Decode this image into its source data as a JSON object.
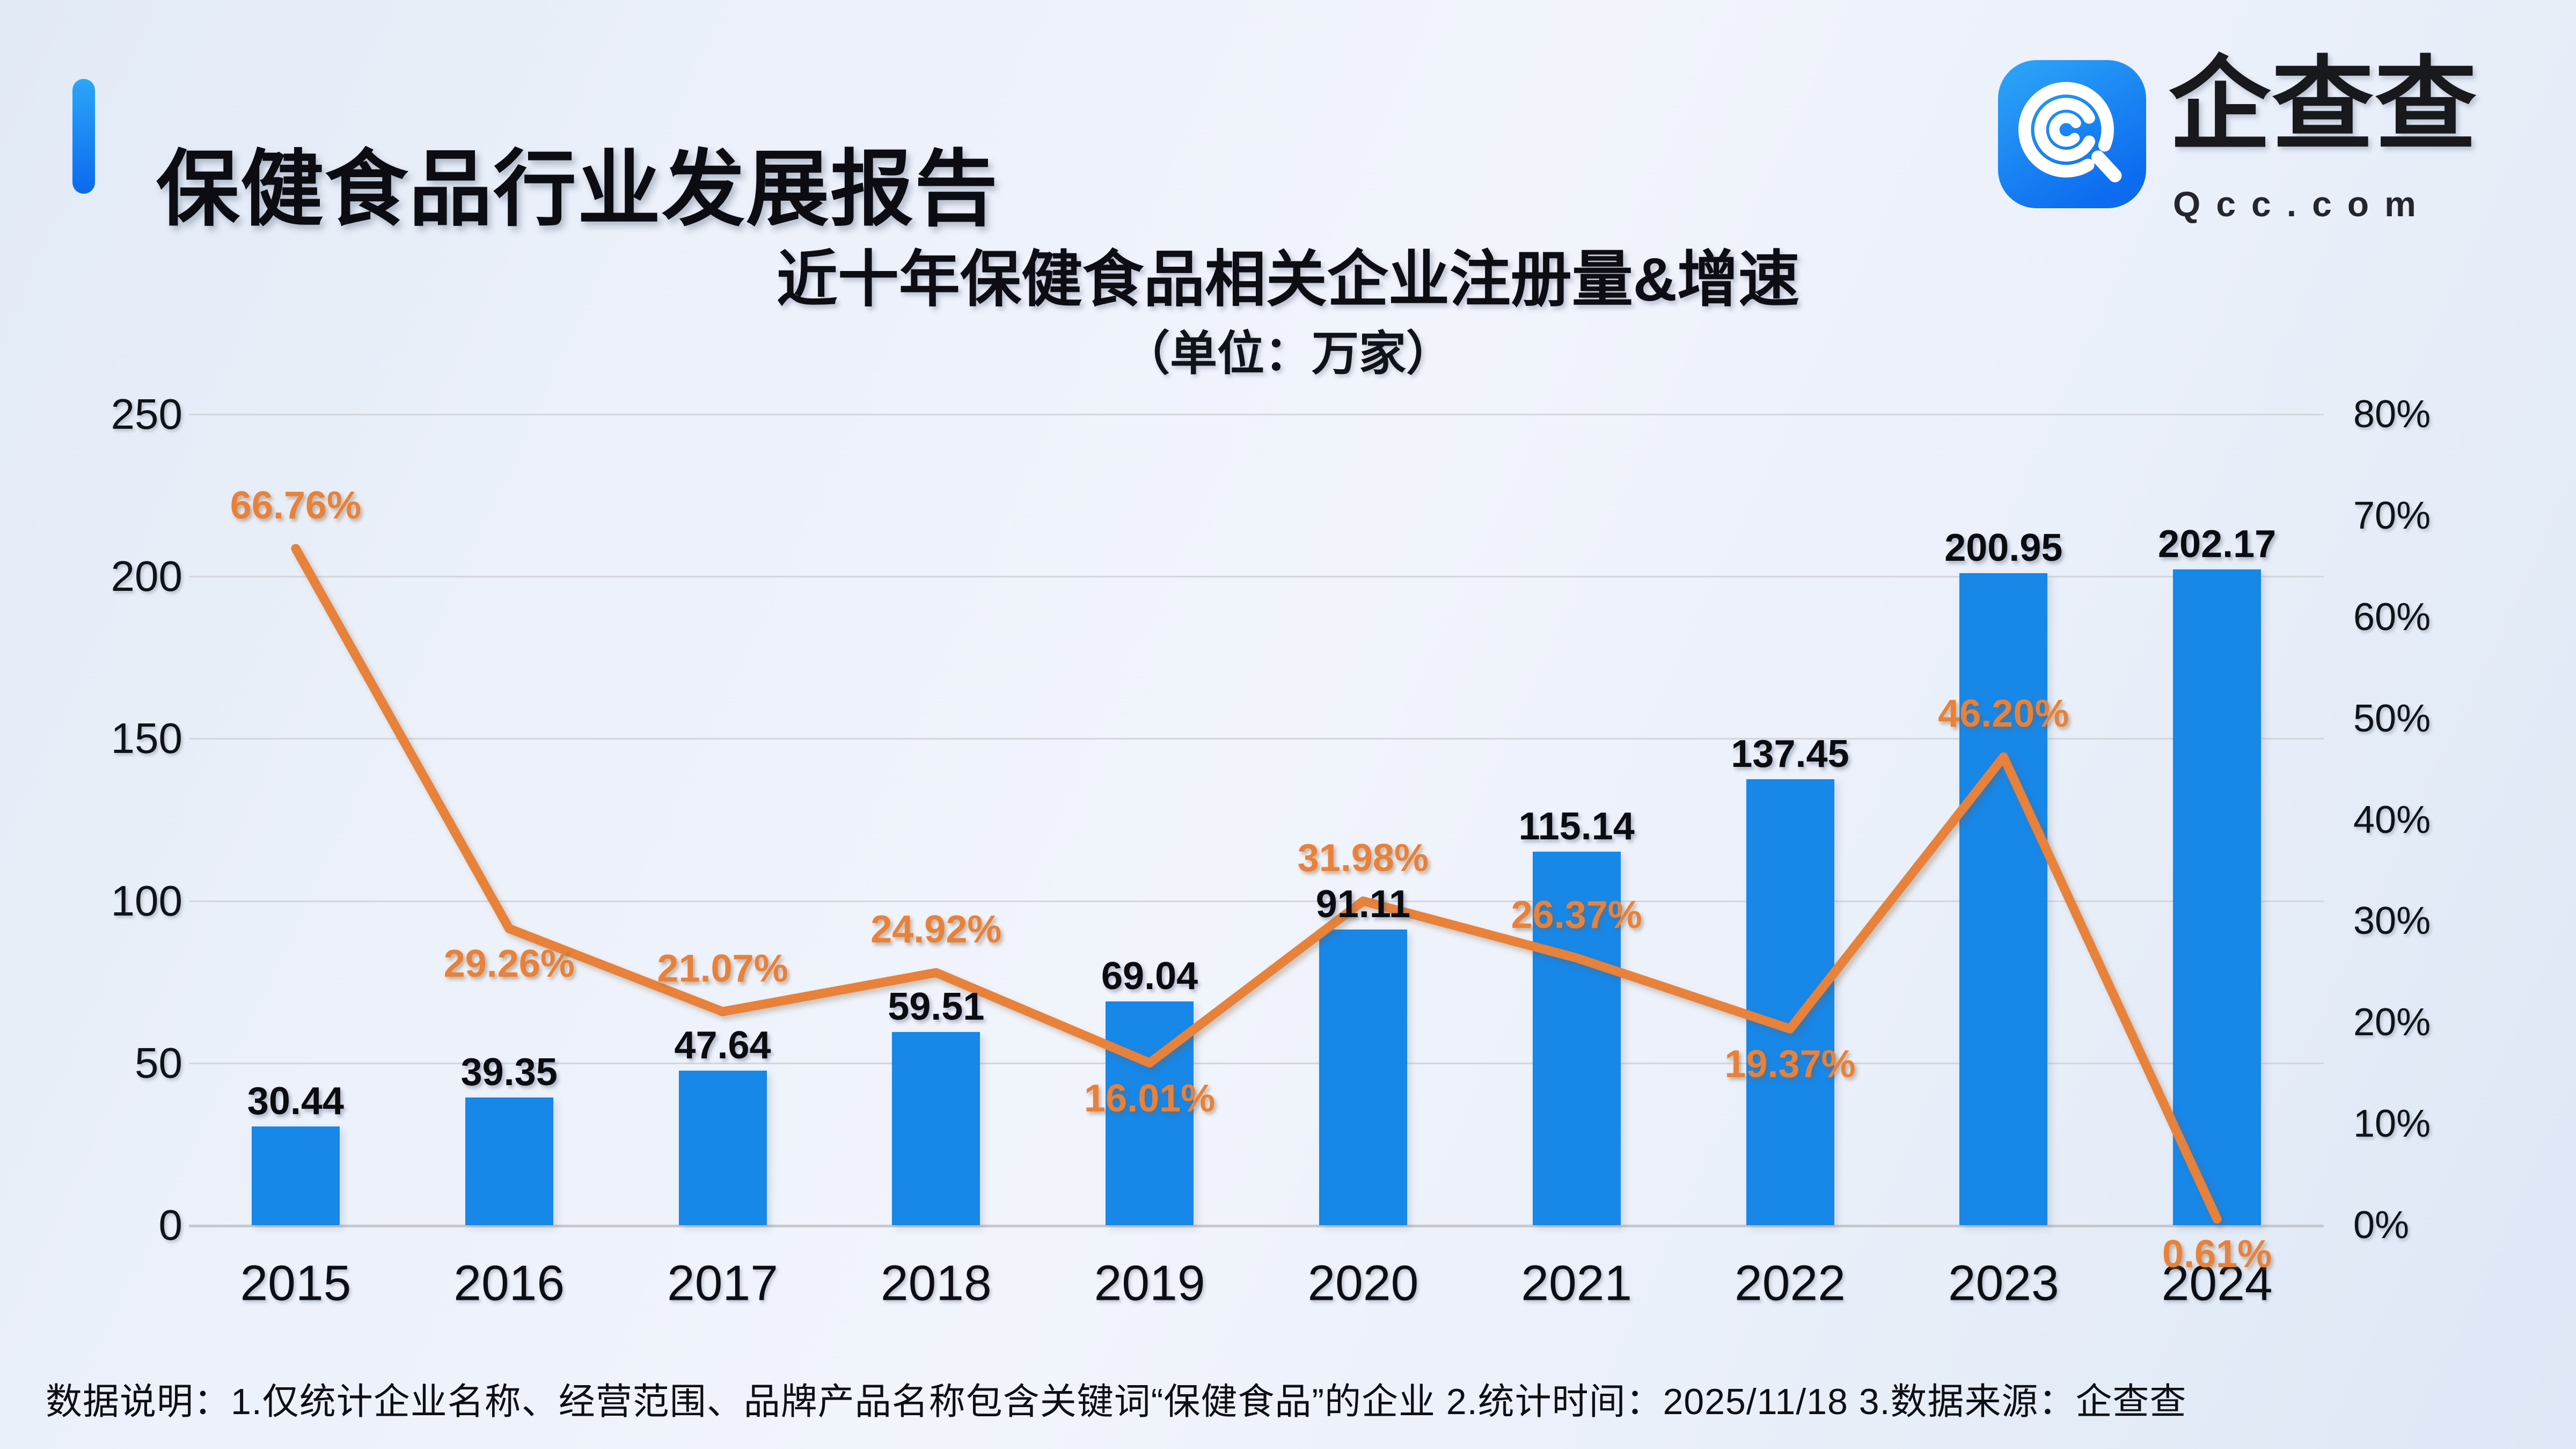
{
  "header": {
    "title": "保健食品行业发展报告"
  },
  "logo": {
    "name": "企查查",
    "domain": "Qcc.com",
    "icon": "qcc-spiral-magnifier-icon"
  },
  "colors": {
    "accent_bar": "#0f7bf0",
    "bar": "#1787e8",
    "line": "#e8813a",
    "logo_blue_top": "#2ea7f8",
    "logo_blue_bottom": "#0c6bef",
    "gridline": "#d3d6db",
    "text": "#0c0e13"
  },
  "chart_data": {
    "type": "bar+line combo",
    "title": "近十年保健食品相关企业注册量&增速",
    "subtitle": "（单位：万家）",
    "categories": [
      "2015",
      "2016",
      "2017",
      "2018",
      "2019",
      "2020",
      "2021",
      "2022",
      "2023",
      "2024"
    ],
    "series": [
      {
        "name": "注册量",
        "type": "bar",
        "axis": "left",
        "unit": "万家",
        "color": "#1787e8",
        "values": [
          30.44,
          39.35,
          47.64,
          59.51,
          69.04,
          91.11,
          115.14,
          137.45,
          200.95,
          202.17
        ],
        "labels": [
          "30.44",
          "39.35",
          "47.64",
          "59.51",
          "69.04",
          "91.11",
          "115.14",
          "137.45",
          "200.95",
          "202.17"
        ]
      },
      {
        "name": "增速",
        "type": "line",
        "axis": "right",
        "unit": "%",
        "color": "#e8813a",
        "values": [
          66.76,
          29.26,
          21.07,
          24.92,
          16.01,
          31.98,
          26.37,
          19.37,
          46.2,
          0.61
        ],
        "labels": [
          "66.76%",
          "29.26%",
          "21.07%",
          "24.92%",
          "16.01%",
          "31.98%",
          "26.37%",
          "19.37%",
          "46.20%",
          "0.61%"
        ],
        "label_side": [
          "above",
          "below",
          "above",
          "above",
          "below",
          "above",
          "above",
          "below",
          "above",
          "below"
        ]
      }
    ],
    "left_axis": {
      "min": 0,
      "max": 250,
      "ticks": [
        "250",
        "200",
        "150",
        "100",
        "50",
        "0"
      ]
    },
    "right_axis": {
      "min": 0,
      "max": 80,
      "ticks": [
        "80%",
        "70%",
        "60%",
        "50%",
        "40%",
        "30%",
        "20%",
        "10%",
        "0%"
      ]
    },
    "grid": true,
    "legend_position": "none"
  },
  "footer": {
    "text": "数据说明：1.仅统计企业名称、经营范围、品牌产品名称包含关键词“保健食品”的企业  2.统计时间：2025/11/18  3.数据来源：企查查"
  }
}
